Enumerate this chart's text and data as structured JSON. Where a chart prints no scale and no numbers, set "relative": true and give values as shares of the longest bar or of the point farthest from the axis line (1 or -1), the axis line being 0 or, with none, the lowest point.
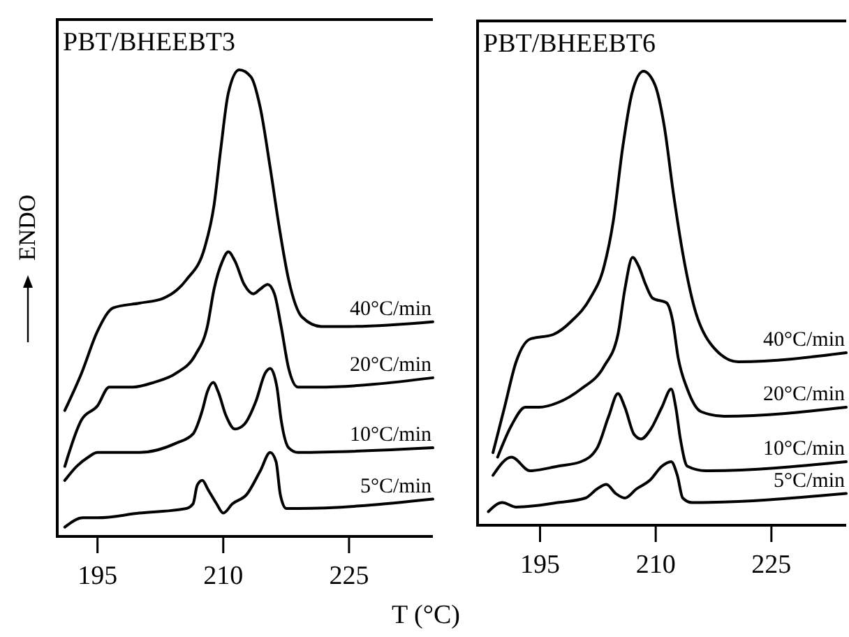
{
  "chart_data": [
    {
      "type": "line",
      "title": "PBT/BHEEBT3",
      "xlabel": "T (°C)",
      "ylabel": "ENDO",
      "relative": true,
      "xlim": [
        190.2,
        235
      ],
      "xticks": [
        195,
        210,
        225
      ],
      "marker": "none",
      "line_style": "solid",
      "series": [
        {
          "name": "40°C/min",
          "color": "#000000",
          "x": [
            191.1,
            193.1,
            195,
            196.9,
            200,
            202.8,
            205.6,
            207.8,
            208.9,
            209.7,
            210.6,
            211.9,
            213.3,
            214.4,
            215.6,
            216.7,
            217.8,
            219.4,
            221.7,
            225,
            235
          ],
          "values": [
            0.27,
            0.35,
            0.44,
            0.49,
            0.5,
            0.51,
            0.55,
            0.62,
            0.71,
            0.83,
            0.95,
            1.0,
            0.985,
            0.92,
            0.79,
            0.66,
            0.55,
            0.47,
            0.45,
            0.45,
            0.46
          ]
        },
        {
          "name": "20°C/min",
          "color": "#000000",
          "x": [
            191.1,
            193.1,
            195,
            196.4,
            197.2,
            199.2,
            201.7,
            204.4,
            206.7,
            208.1,
            208.9,
            209.9,
            210.6,
            211.4,
            212.5,
            213.6,
            214.4,
            215.3,
            216.1,
            216.9,
            217.8,
            218.9,
            221.1,
            235
          ],
          "values": [
            0.15,
            0.25,
            0.28,
            0.32,
            0.32,
            0.32,
            0.33,
            0.35,
            0.39,
            0.45,
            0.53,
            0.59,
            0.61,
            0.59,
            0.54,
            0.52,
            0.53,
            0.54,
            0.52,
            0.45,
            0.36,
            0.32,
            0.32,
            0.34
          ]
        },
        {
          "name": "10°C/min",
          "color": "#000000",
          "x": [
            191.1,
            192.5,
            193.9,
            195,
            196.7,
            200,
            204.4,
            206.4,
            207.5,
            208.1,
            208.8,
            209.4,
            210.3,
            211.4,
            212.5,
            213.9,
            215,
            215.6,
            216.4,
            216.9,
            217.8,
            218.9,
            235
          ],
          "values": [
            0.12,
            0.15,
            0.17,
            0.18,
            0.18,
            0.18,
            0.2,
            0.22,
            0.27,
            0.31,
            0.33,
            0.31,
            0.26,
            0.23,
            0.24,
            0.29,
            0.35,
            0.36,
            0.32,
            0.25,
            0.19,
            0.18,
            0.19
          ]
        },
        {
          "name": "5°C/min",
          "color": "#000000",
          "x": [
            191.1,
            193.3,
            195,
            200,
            205.6,
            206.4,
            206.9,
            207.5,
            208.2,
            209.2,
            210,
            211.1,
            212.8,
            214.4,
            215.6,
            216.3,
            216.8,
            217.5,
            218.9,
            235
          ],
          "values": [
            0.02,
            0.04,
            0.04,
            0.05,
            0.06,
            0.07,
            0.11,
            0.12,
            0.1,
            0.07,
            0.05,
            0.07,
            0.09,
            0.14,
            0.18,
            0.16,
            0.09,
            0.06,
            0.06,
            0.08
          ]
        }
      ]
    },
    {
      "type": "line",
      "title": "PBT/BHEEBT6",
      "relative": true,
      "xlim": [
        186.9,
        234.7
      ],
      "xticks": [
        195,
        210,
        225
      ],
      "marker": "none",
      "line_style": "solid",
      "series": [
        {
          "name": "40°C/min",
          "color": "#000000",
          "x": [
            188.9,
            190.4,
            191.9,
            193.7,
            196.7,
            199.1,
            201.5,
            203.3,
            204.5,
            205.7,
            206.9,
            208.4,
            209.9,
            211.1,
            212.3,
            213.5,
            215,
            217.1,
            220.7,
            234.7
          ],
          "values": [
            0.16,
            0.26,
            0.36,
            0.41,
            0.42,
            0.45,
            0.5,
            0.57,
            0.67,
            0.83,
            0.95,
            1.0,
            0.97,
            0.88,
            0.73,
            0.6,
            0.48,
            0.4,
            0.36,
            0.38
          ]
        },
        {
          "name": "20°C/min",
          "color": "#000000",
          "x": [
            189.5,
            191.3,
            193.1,
            194.9,
            197.3,
            200.3,
            203.3,
            205.1,
            206,
            207,
            207.8,
            208.7,
            209.6,
            211.4,
            212.2,
            212.9,
            214.1,
            215.9,
            218.9,
            234.7
          ],
          "values": [
            0.15,
            0.22,
            0.26,
            0.26,
            0.27,
            0.3,
            0.35,
            0.42,
            0.52,
            0.59,
            0.57,
            0.53,
            0.5,
            0.49,
            0.45,
            0.37,
            0.3,
            0.25,
            0.24,
            0.26
          ]
        },
        {
          "name": "10°C/min",
          "color": "#000000",
          "x": [
            188.9,
            191.3,
            193.7,
            197.3,
            200.3,
            202.4,
            203.9,
            205.1,
            206,
            207.2,
            208.1,
            209.3,
            210.8,
            212,
            212.6,
            213.2,
            214.1,
            216.5,
            234.7
          ],
          "values": [
            0.11,
            0.15,
            0.12,
            0.13,
            0.14,
            0.17,
            0.24,
            0.29,
            0.26,
            0.2,
            0.19,
            0.21,
            0.26,
            0.3,
            0.26,
            0.19,
            0.13,
            0.12,
            0.14
          ]
        },
        {
          "name": "5°C/min",
          "color": "#000000",
          "x": [
            188.3,
            190.1,
            191.9,
            197.3,
            200.9,
            202.4,
            203.6,
            204.8,
            206,
            207.5,
            209.3,
            210.8,
            212,
            212.8,
            213.5,
            214.7,
            234.7
          ],
          "values": [
            0.03,
            0.05,
            0.04,
            0.05,
            0.06,
            0.08,
            0.09,
            0.07,
            0.06,
            0.08,
            0.1,
            0.13,
            0.14,
            0.11,
            0.06,
            0.05,
            0.07
          ]
        }
      ]
    }
  ]
}
